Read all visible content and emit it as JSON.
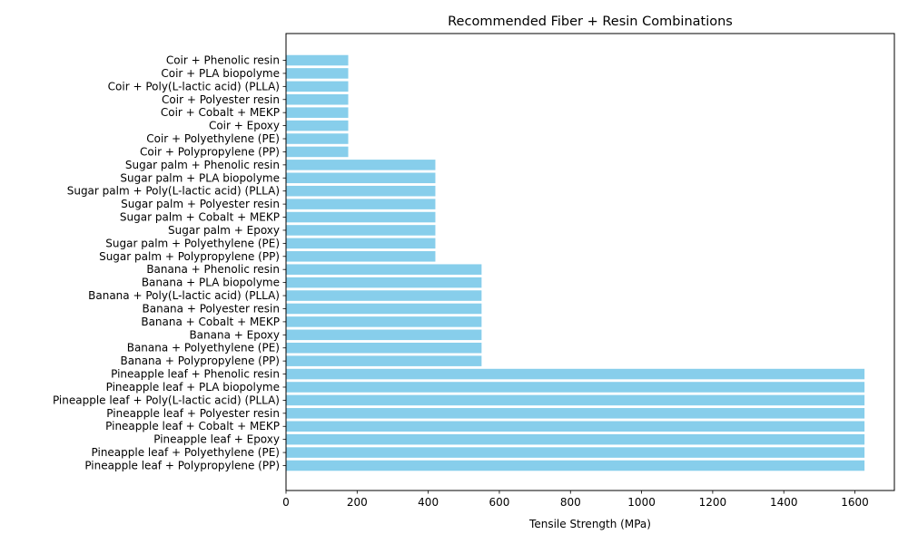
{
  "chart_data": {
    "type": "bar",
    "orientation": "horizontal",
    "title": "Recommended Fiber + Resin Combinations",
    "xlabel": "Tensile Strength (MPa)",
    "ylabel": "",
    "xlim": [
      0,
      1711
    ],
    "xticks": [
      0,
      200,
      400,
      600,
      800,
      1000,
      1200,
      1400,
      1600
    ],
    "grid": false,
    "bar_color": "#87ceeb",
    "categories": [
      "Pineapple leaf + Polypropylene (PP)",
      "Pineapple leaf + Polyethylene (PE)",
      "Pineapple leaf + Epoxy",
      "Pineapple leaf + Cobalt + MEKP",
      "Pineapple leaf + Polyester resin",
      "Pineapple leaf + Poly(L-lactic acid) (PLLA)",
      "Pineapple leaf + PLA biopolyme",
      "Pineapple leaf + Phenolic resin",
      "Banana + Polypropylene (PP)",
      "Banana + Polyethylene (PE)",
      "Banana + Epoxy",
      "Banana + Cobalt + MEKP",
      "Banana + Polyester resin",
      "Banana + Poly(L-lactic acid) (PLLA)",
      "Banana + PLA biopolyme",
      "Banana + Phenolic resin",
      "Sugar palm + Polypropylene (PP)",
      "Sugar palm + Polyethylene (PE)",
      "Sugar palm + Epoxy",
      "Sugar palm + Cobalt + MEKP",
      "Sugar palm + Polyester resin",
      "Sugar palm + Poly(L-lactic acid) (PLLA)",
      "Sugar palm + PLA biopolyme",
      "Sugar palm + Phenolic resin",
      "Coir + Polypropylene (PP)",
      "Coir + Polyethylene (PE)",
      "Coir + Epoxy",
      "Coir + Cobalt + MEKP",
      "Coir + Polyester resin",
      "Coir + Poly(L-lactic acid) (PLLA)",
      "Coir + PLA biopolyme",
      "Coir + Phenolic resin"
    ],
    "values": [
      1627,
      1627,
      1627,
      1627,
      1627,
      1627,
      1627,
      1627,
      550,
      550,
      550,
      550,
      550,
      550,
      550,
      550,
      420,
      420,
      420,
      420,
      420,
      420,
      420,
      420,
      175,
      175,
      175,
      175,
      175,
      175,
      175,
      175
    ]
  }
}
